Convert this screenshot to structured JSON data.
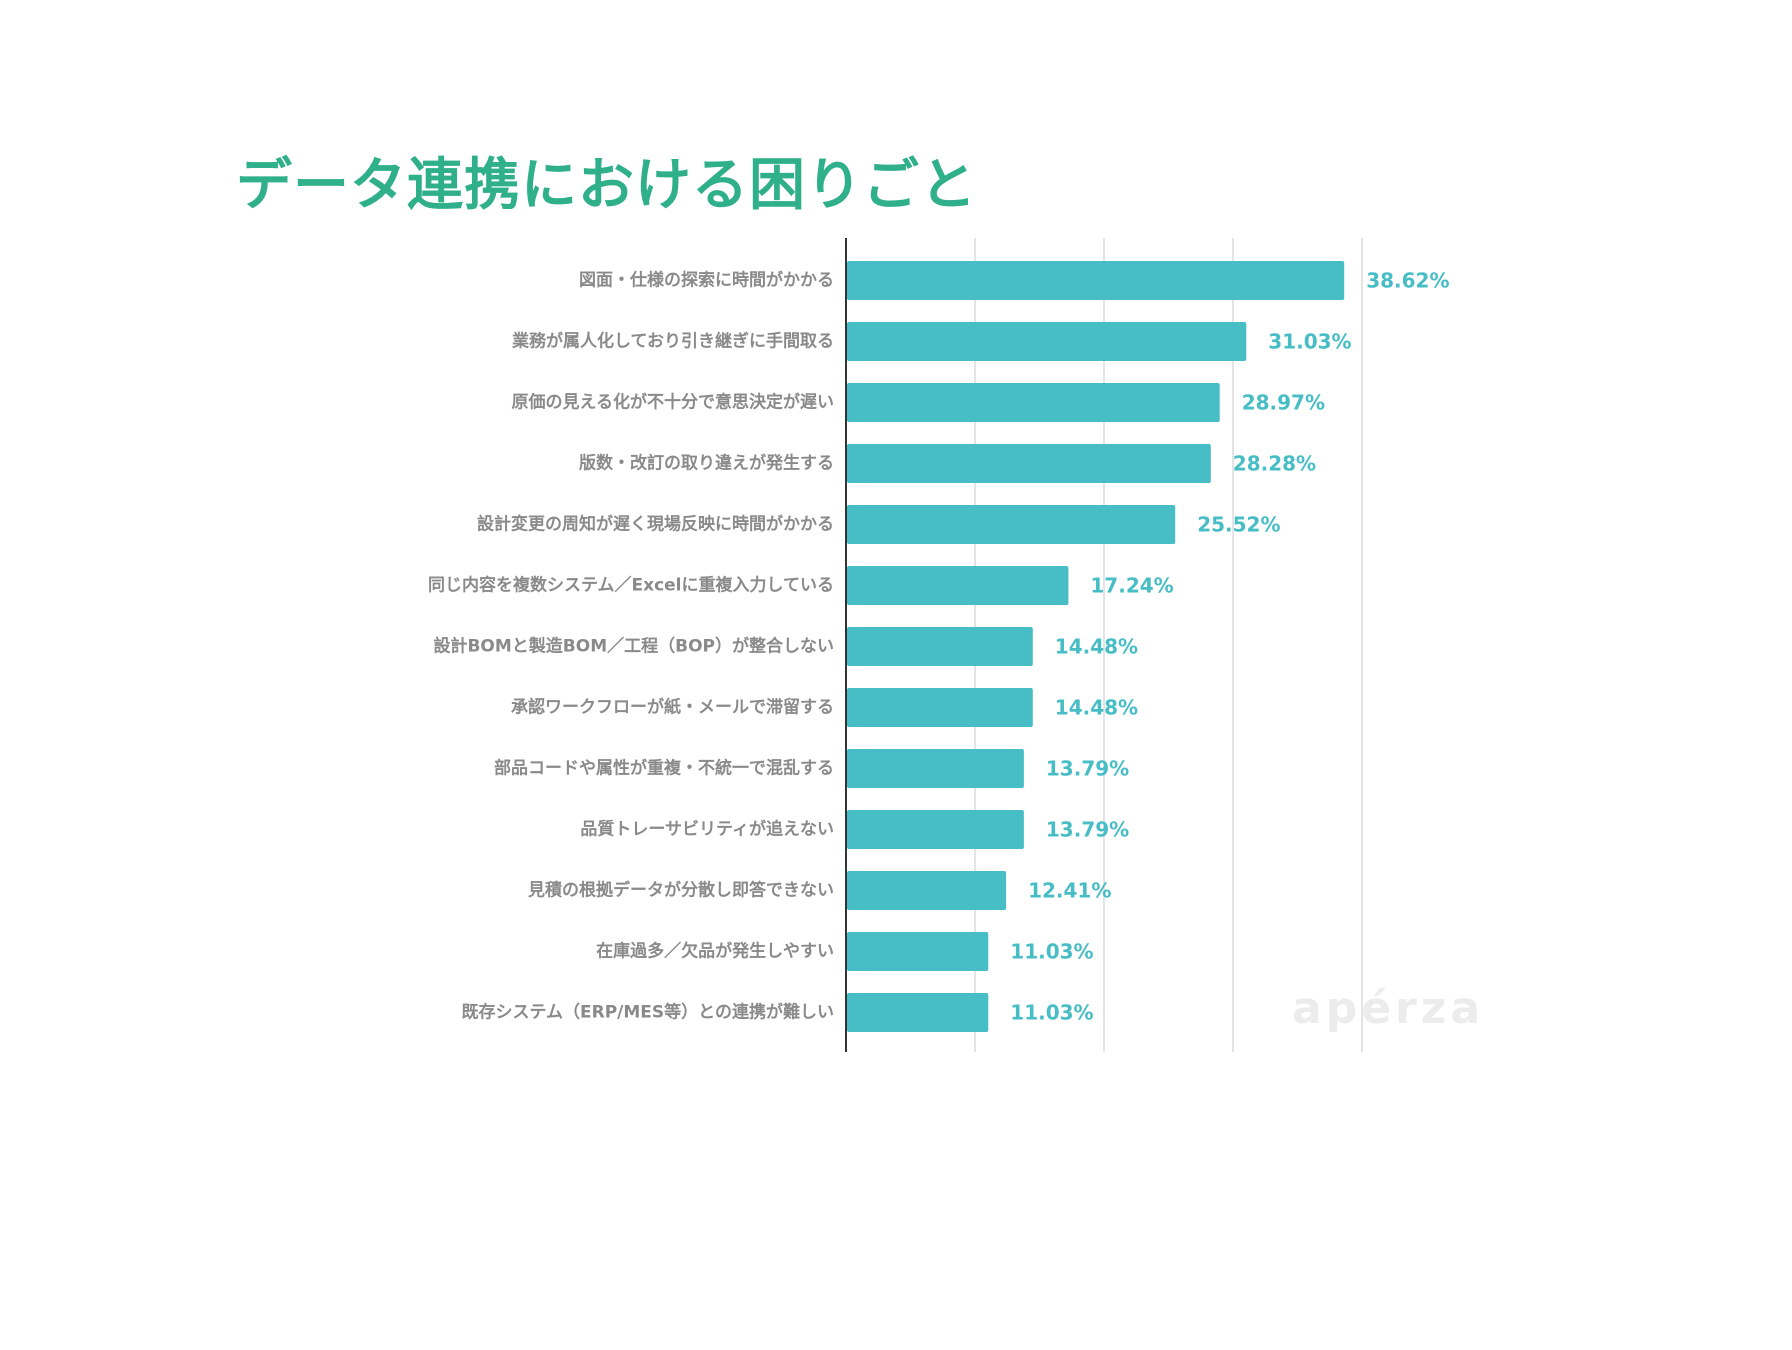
{
  "watermark": "apérza",
  "colors": {
    "title": "#2fb08a",
    "bar": "#47bdc6",
    "value_label": "#47bdc6",
    "category_label": "#8a8a8a",
    "grid": "#dcdcdc",
    "axis": "#333333",
    "watermark": "#ececec"
  },
  "chart_data": {
    "type": "bar",
    "orientation": "horizontal",
    "title": "データ連携における困りごと",
    "categories": [
      "図面・仕様の探索に時間がかかる",
      "業務が属人化しており引き継ぎに手間取る",
      "原価の見える化が不十分で意思決定が遅い",
      "版数・改訂の取り違えが発生する",
      "設計変更の周知が遅く現場反映に時間がかかる",
      "同じ内容を複数システム／Excelに重複入力している",
      "設計BOMと製造BOM／工程（BOP）が整合しない",
      "承認ワークフローが紙・メールで滞留する",
      "部品コードや属性が重複・不統一で混乱する",
      "品質トレーサビリティが追えない",
      "見積の根拠データが分散し即答できない",
      "在庫過多／欠品が発生しやすい",
      "既存システム（ERP/MES等）との連携が難しい"
    ],
    "values": [
      38.62,
      31.03,
      28.97,
      28.28,
      25.52,
      17.24,
      14.48,
      14.48,
      13.79,
      13.79,
      12.41,
      11.03,
      11.03
    ],
    "value_labels": [
      "38.62%",
      "31.03%",
      "28.97%",
      "28.28%",
      "25.52%",
      "17.24%",
      "14.48%",
      "14.48%",
      "13.79%",
      "13.79%",
      "12.41%",
      "11.03%",
      "11.03%"
    ],
    "unit": "%",
    "xlim": [
      0,
      40
    ],
    "grid_step": 10,
    "grid": true,
    "xlabel": "",
    "ylabel": "",
    "tick_labels_shown": false
  }
}
